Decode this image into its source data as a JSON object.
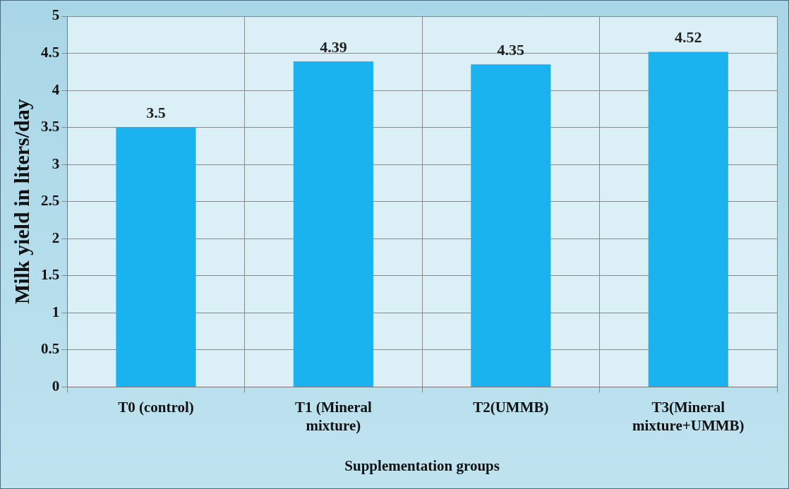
{
  "chart_data": {
    "type": "bar",
    "xlabel": "Supplementation groups",
    "ylabel": "Milk yield in liters/day",
    "categories": [
      [
        "T0 (control)"
      ],
      [
        "T1 (Mineral",
        "mixture)"
      ],
      [
        "T2(UMMB)"
      ],
      [
        "T3(Mineral",
        "mixture+UMMB)"
      ]
    ],
    "values": [
      3.5,
      4.39,
      4.35,
      4.52
    ],
    "color": "#1ab2ef",
    "ylim": [
      0,
      5
    ],
    "yticks": [
      0,
      0.5,
      1,
      1.5,
      2,
      2.5,
      3,
      3.5,
      4,
      4.5,
      5
    ],
    "grid": true,
    "data_labels": true
  }
}
